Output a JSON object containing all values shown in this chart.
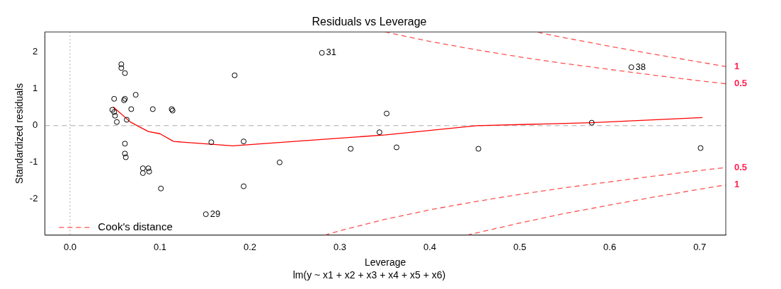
{
  "chart_data": {
    "type": "scatter",
    "title": "Residuals vs Leverage",
    "subtitle": "lm(y ~ x1 + x2 + x3 + x4 + x5 + x6)",
    "xlabel": "Leverage",
    "ylabel": "Standardized residuals",
    "xlim": [
      -0.028,
      0.729
    ],
    "ylim": [
      -2.98,
      2.55
    ],
    "xticks": [
      {
        "value": 0,
        "label": "0.0"
      },
      0.1,
      0.2,
      0.3,
      0.4,
      0.5,
      0.6,
      0.7
    ],
    "yticks": [
      -2,
      -1,
      0,
      1,
      2
    ],
    "grid": false,
    "legend": "bottom left",
    "series": [
      {
        "color": "#000000",
        "marker": "circle",
        "x": [
          0.057,
          0.057,
          0.061,
          0.183,
          0.073,
          0.049,
          0.061,
          0.06,
          0.068,
          0.092,
          0.113,
          0.114,
          0.047,
          0.049,
          0.05,
          0.052,
          0.063,
          0.061,
          0.157,
          0.193,
          0.061,
          0.062,
          0.233,
          0.081,
          0.087,
          0.081,
          0.088,
          0.101,
          0.193,
          0.151,
          0.28,
          0.352,
          0.344,
          0.312,
          0.363,
          0.454,
          0.624,
          0.58,
          0.701
        ],
        "values": [
          1.67,
          1.57,
          1.43,
          1.37,
          0.84,
          0.73,
          0.73,
          0.69,
          0.45,
          0.45,
          0.45,
          0.41,
          0.43,
          0.37,
          0.27,
          0.1,
          0.16,
          -0.49,
          -0.45,
          -0.43,
          -0.76,
          -0.86,
          -1.0,
          -1.16,
          -1.16,
          -1.29,
          -1.25,
          -1.71,
          -1.65,
          -2.41,
          1.98,
          0.33,
          -0.18,
          -0.63,
          -0.59,
          -0.63,
          1.59,
          0.08,
          -0.61
        ]
      },
      {
        "type": "line",
        "color": "#ff0000",
        "marker": "none",
        "line_style": "solid",
        "x": [
          0.048,
          0.067,
          0.087,
          0.1,
          0.115,
          0.181,
          0.351,
          0.452,
          0.58,
          0.703
        ],
        "values": [
          0.51,
          0.1,
          -0.16,
          -0.22,
          -0.43,
          -0.55,
          -0.25,
          0.0,
          0.08,
          0.22
        ]
      },
      {
        "type": "line",
        "name": "Cook's distance",
        "color": "#ff5050",
        "marker": "none",
        "line_style": "dashed",
        "x": [
          0.35,
          0.4,
          0.45,
          0.5,
          0.55,
          0.6,
          0.65,
          0.7,
          0.729
        ],
        "values": [
          2.55,
          2.29,
          2.07,
          1.87,
          1.69,
          1.53,
          1.37,
          1.22,
          1.14
        ]
      },
      {
        "type": "line",
        "color": "#ff5050",
        "marker": "none",
        "line_style": "dashed",
        "x": [
          0.283,
          0.3,
          0.35,
          0.4,
          0.45,
          0.5,
          0.55,
          0.6,
          0.65,
          0.7,
          0.729
        ],
        "values": [
          -2.98,
          -2.86,
          -2.55,
          -2.29,
          -2.07,
          -1.87,
          -1.69,
          -1.53,
          -1.37,
          -1.22,
          -1.14
        ]
      },
      {
        "type": "line",
        "color": "#ff5050",
        "marker": "none",
        "line_style": "dashed",
        "x": [
          0.52,
          0.55,
          0.6,
          0.65,
          0.7,
          0.729
        ],
        "values": [
          2.54,
          2.39,
          2.16,
          1.94,
          1.73,
          1.61
        ]
      },
      {
        "type": "line",
        "color": "#ff5050",
        "marker": "none",
        "line_style": "dashed",
        "x": [
          0.441,
          0.45,
          0.5,
          0.55,
          0.6,
          0.65,
          0.7,
          0.729
        ],
        "values": [
          -2.98,
          -2.93,
          -2.65,
          -2.39,
          -2.16,
          -1.94,
          -1.73,
          -1.61
        ]
      }
    ],
    "ref_lines": [
      {
        "axis": "x",
        "value": 0,
        "color": "#aaaaaa",
        "line_style": "dotted"
      },
      {
        "axis": "y",
        "value": 0,
        "color": "#aaaaaa",
        "line_style": "dashed"
      }
    ],
    "annotations": [
      {
        "text": "31",
        "x": 0.28,
        "y": 1.98
      },
      {
        "text": "38",
        "x": 0.624,
        "y": 1.59
      },
      {
        "text": "29",
        "x": 0.151,
        "y": -2.41
      },
      {
        "text": "1",
        "x": 0.729,
        "y": 1.61
      },
      {
        "text": "0.5",
        "x": 0.729,
        "y": 1.14
      },
      {
        "text": "0.5",
        "x": 0.729,
        "y": -1.14
      },
      {
        "text": "1",
        "x": 0.729,
        "y": -1.61
      }
    ]
  }
}
